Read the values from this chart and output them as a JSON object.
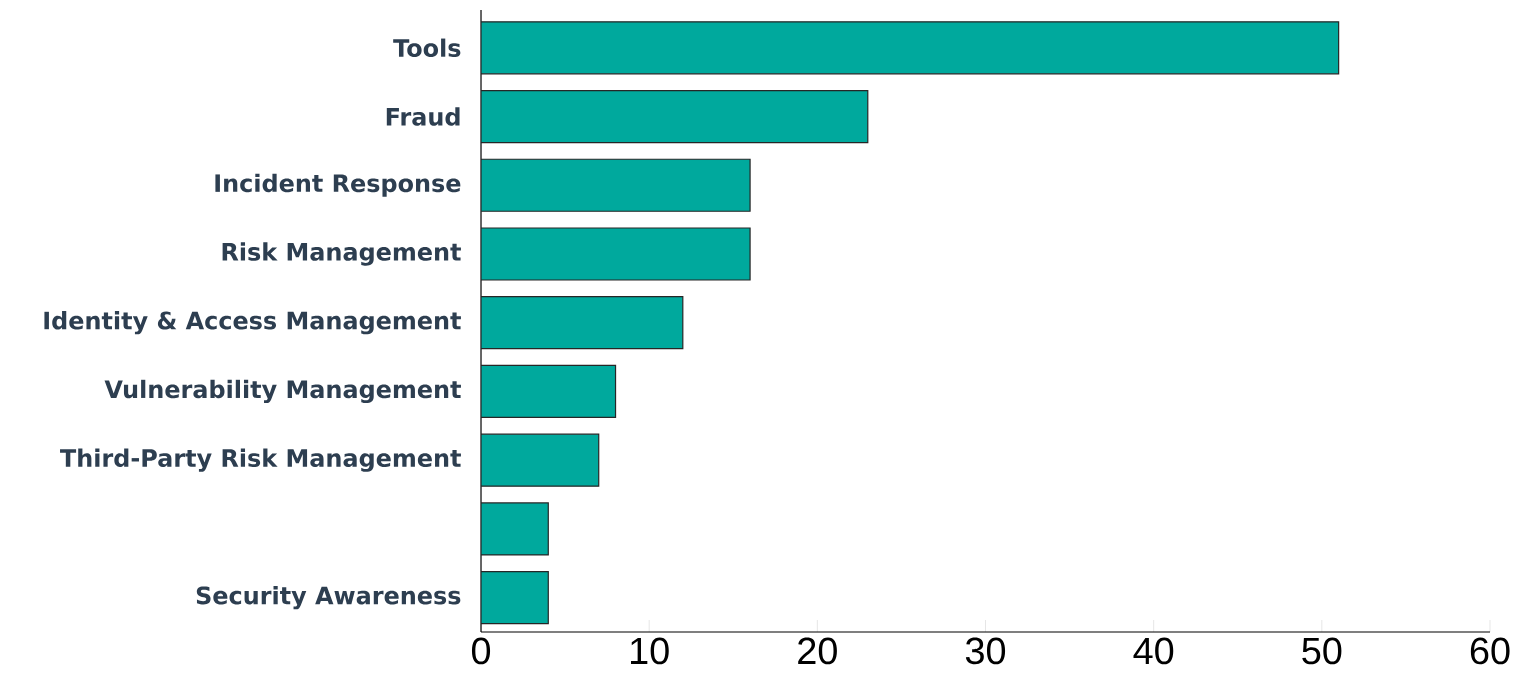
{
  "chart_data": {
    "type": "bar",
    "orientation": "horizontal",
    "categories": [
      "Tools",
      "Fraud",
      "Incident Response",
      "Risk Management",
      "Identity & Access Management",
      "Vulnerability Management",
      "Third-Party Risk Management",
      null,
      "Security Awareness"
    ],
    "values": [
      51,
      23,
      16,
      16,
      12,
      8,
      7,
      4,
      4
    ],
    "color": "#00a99d",
    "xlim": [
      0,
      60
    ],
    "xticks": [
      0,
      10,
      20,
      30,
      40,
      50,
      60
    ],
    "grid": false
  }
}
